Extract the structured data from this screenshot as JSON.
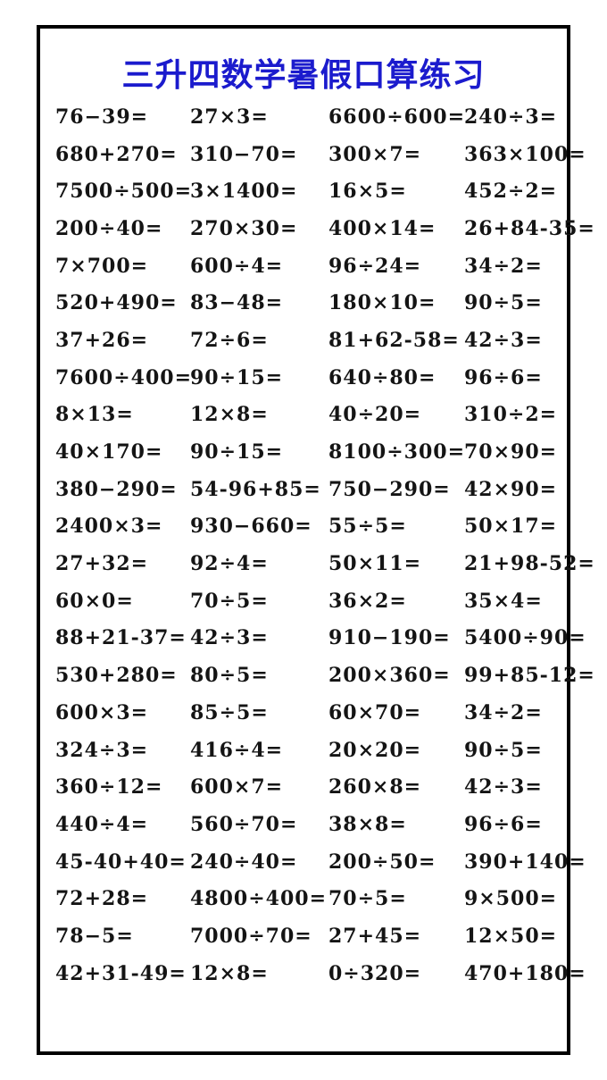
{
  "page": {
    "title": "三升四数学暑假口算练习",
    "title_color": "#1b1bcd",
    "border_color": "#000000",
    "text_color": "#141414"
  },
  "problems": {
    "rows": [
      [
        "76−39=",
        "27×3=",
        "6600÷600=",
        "240÷3="
      ],
      [
        "680+270=",
        "310−70=",
        "300×7=",
        "363×100="
      ],
      [
        "7500÷500=",
        "3×1400=",
        "16×5=",
        "452÷2="
      ],
      [
        "200÷40=",
        "270×30=",
        "400×14=",
        "26+84-35="
      ],
      [
        "7×700=",
        "600÷4=",
        "96÷24=",
        "34÷2="
      ],
      [
        "520+490=",
        "83−48=",
        "180×10=",
        "90÷5="
      ],
      [
        "37+26=",
        "72÷6=",
        "81+62-58=",
        "42÷3="
      ],
      [
        "7600÷400=",
        "90÷15=",
        "640÷80=",
        "96÷6="
      ],
      [
        "8×13=",
        "12×8=",
        "40÷20=",
        "310÷2="
      ],
      [
        "40×170=",
        "90÷15=",
        "8100÷300=",
        "70×90="
      ],
      [
        "380−290=",
        "54-96+85=",
        "750−290=",
        "42×90="
      ],
      [
        "2400×3=",
        "930−660=",
        "55÷5=",
        "50×17="
      ],
      [
        "27+32=",
        "92÷4=",
        "50×11=",
        "21+98-52="
      ],
      [
        "60×0=",
        "70÷5=",
        "36×2=",
        "35×4="
      ],
      [
        "88+21-37=",
        "42÷3=",
        "910−190=",
        "5400÷90="
      ],
      [
        "530+280=",
        "80÷5=",
        "200×360=",
        "99+85-12="
      ],
      [
        "600×3=",
        "85÷5=",
        "60×70=",
        "34÷2="
      ],
      [
        "324÷3=",
        "416÷4=",
        "20×20=",
        "90÷5="
      ],
      [
        "360÷12=",
        "600×7=",
        "260×8=",
        "42÷3="
      ],
      [
        "440÷4=",
        "560÷70=",
        "38×8=",
        "96÷6="
      ],
      [
        "45-40+40=",
        "240÷40=",
        "200÷50=",
        "390+140="
      ],
      [
        "72+28=",
        "4800÷400=",
        "70÷5=",
        "9×500="
      ],
      [
        "78−5=",
        "7000÷70=",
        "27+45=",
        "12×50="
      ],
      [
        "42+31-49=",
        "12×8=",
        "0÷320=",
        "470+180="
      ]
    ]
  }
}
